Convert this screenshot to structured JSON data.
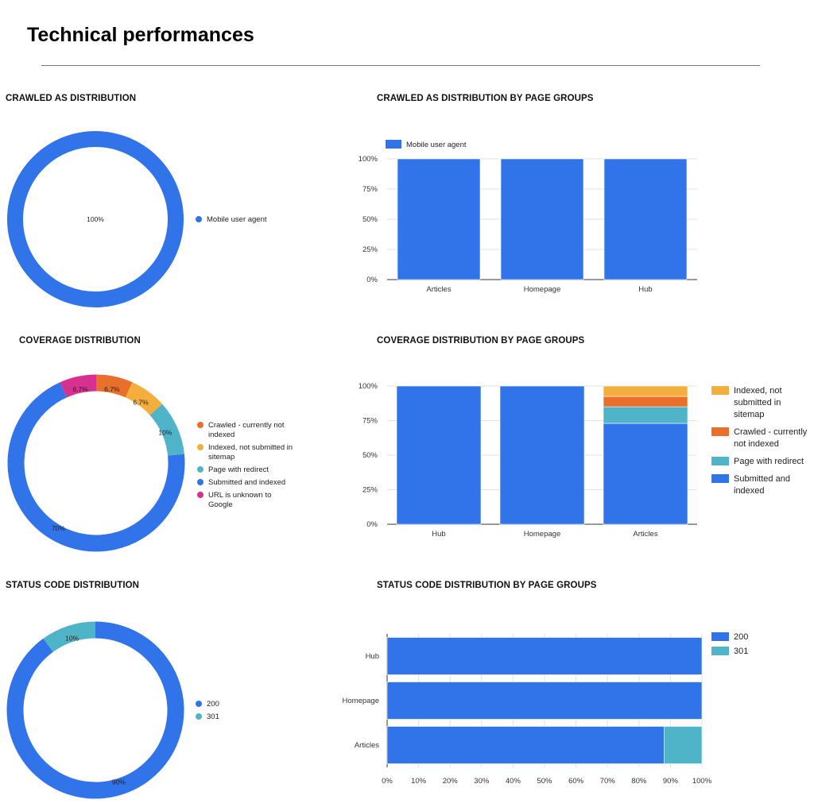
{
  "page": {
    "title": "Technical performances"
  },
  "sections": {
    "crawled_pie": "CRAWLED AS DISTRIBUTION",
    "crawled_bar": "CRAWLED AS DISTRIBUTION BY PAGE GROUPS",
    "coverage_pie": "COVERAGE DISTRIBUTION",
    "coverage_bar": "COVERAGE DISTRIBUTION BY PAGE GROUPS",
    "status_pie": "STATUS CODE DISTRIBUTION",
    "status_bar": "STATUS CODE DISTRIBUTION BY PAGE GROUPS"
  },
  "colors": {
    "blue": "#3173E8",
    "teal": "#50B4C8",
    "orange": "#E8702A",
    "yellow": "#F4AE3D",
    "magenta": "#D8308F"
  },
  "chart_data": [
    {
      "id": "crawled_pie",
      "type": "pie",
      "title": "CRAWLED AS DISTRIBUTION",
      "slices": [
        {
          "label": "Mobile user agent",
          "value": 100,
          "display": "100%",
          "color": "#3173E8"
        }
      ],
      "legend": [
        "Mobile user agent"
      ]
    },
    {
      "id": "crawled_bar",
      "type": "bar",
      "title": "CRAWLED AS DISTRIBUTION BY PAGE GROUPS",
      "orientation": "vertical",
      "stacked": true,
      "categories": [
        "Articles",
        "Homepage",
        "Hub"
      ],
      "series": [
        {
          "name": "Mobile user agent",
          "color": "#3173E8",
          "values": [
            100,
            100,
            100
          ]
        }
      ],
      "yticks": [
        "0%",
        "25%",
        "50%",
        "75%",
        "100%"
      ],
      "ylim": [
        0,
        100
      ],
      "grid": true,
      "legend_position": "top"
    },
    {
      "id": "coverage_pie",
      "type": "pie",
      "title": "COVERAGE DISTRIBUTION",
      "slices": [
        {
          "label": "Crawled - currently not indexed",
          "value": 6.7,
          "display": "6.7%",
          "color": "#E8702A"
        },
        {
          "label": "Indexed, not submitted in sitemap",
          "value": 6.7,
          "display": "6.7%",
          "color": "#F4AE3D"
        },
        {
          "label": "Page with redirect",
          "value": 10,
          "display": "10%",
          "color": "#50B4C8"
        },
        {
          "label": "Submitted and indexed",
          "value": 70,
          "display": "70%",
          "color": "#3173E8"
        },
        {
          "label": "URL is unknown to Google",
          "value": 6.7,
          "display": "6.7%",
          "color": "#D8308F"
        }
      ],
      "legend": [
        [
          "Crawled - currently not",
          "indexed"
        ],
        [
          "Indexed, not submitted in",
          "sitemap"
        ],
        [
          "Page with redirect"
        ],
        [
          "Submitted and indexed"
        ],
        [
          "URL is unknown to",
          "Google"
        ]
      ]
    },
    {
      "id": "coverage_bar",
      "type": "bar",
      "title": "COVERAGE DISTRIBUTION BY PAGE GROUPS",
      "orientation": "vertical",
      "stacked": true,
      "categories": [
        "Hub",
        "Homepage",
        "Articles"
      ],
      "series": [
        {
          "name": "Submitted and indexed",
          "color": "#3173E8",
          "values": [
            100,
            100,
            73
          ]
        },
        {
          "name": "Page with redirect",
          "color": "#50B4C8",
          "values": [
            0,
            0,
            12
          ]
        },
        {
          "name": "Crawled - currently not indexed",
          "color": "#E8702A",
          "values": [
            0,
            0,
            7.5
          ]
        },
        {
          "name": "Indexed, not submitted in sitemap",
          "color": "#F4AE3D",
          "values": [
            0,
            0,
            7.5
          ]
        }
      ],
      "legend": [
        {
          "lines": [
            "Indexed, not",
            "submitted in",
            "sitemap"
          ],
          "color": "#F4AE3D"
        },
        {
          "lines": [
            "Crawled - currently",
            "not indexed"
          ],
          "color": "#E8702A"
        },
        {
          "lines": [
            "Page with redirect"
          ],
          "color": "#50B4C8"
        },
        {
          "lines": [
            "Submitted and",
            "indexed"
          ],
          "color": "#3173E8"
        }
      ],
      "yticks": [
        "0%",
        "25%",
        "50%",
        "75%",
        "100%"
      ],
      "ylim": [
        0,
        100
      ],
      "grid": true,
      "legend_position": "right"
    },
    {
      "id": "status_pie",
      "type": "pie",
      "title": "STATUS CODE DISTRIBUTION",
      "slices": [
        {
          "label": "200",
          "value": 90,
          "display": "90%",
          "color": "#3173E8"
        },
        {
          "label": "301",
          "value": 10,
          "display": "10%",
          "color": "#50B4C8"
        }
      ],
      "legend": [
        "200",
        "301"
      ]
    },
    {
      "id": "status_bar",
      "type": "bar",
      "title": "STATUS CODE DISTRIBUTION BY PAGE GROUPS",
      "orientation": "horizontal",
      "stacked": true,
      "categories": [
        "Hub",
        "Homepage",
        "Articles"
      ],
      "series": [
        {
          "name": "200",
          "color": "#3173E8",
          "values": [
            100,
            100,
            88
          ]
        },
        {
          "name": "301",
          "color": "#50B4C8",
          "values": [
            0,
            0,
            12
          ]
        }
      ],
      "xticks": [
        "0%",
        "10%",
        "20%",
        "30%",
        "40%",
        "50%",
        "60%",
        "70%",
        "80%",
        "90%",
        "100%"
      ],
      "xlim": [
        0,
        100
      ],
      "grid": true,
      "legend_position": "right"
    }
  ]
}
